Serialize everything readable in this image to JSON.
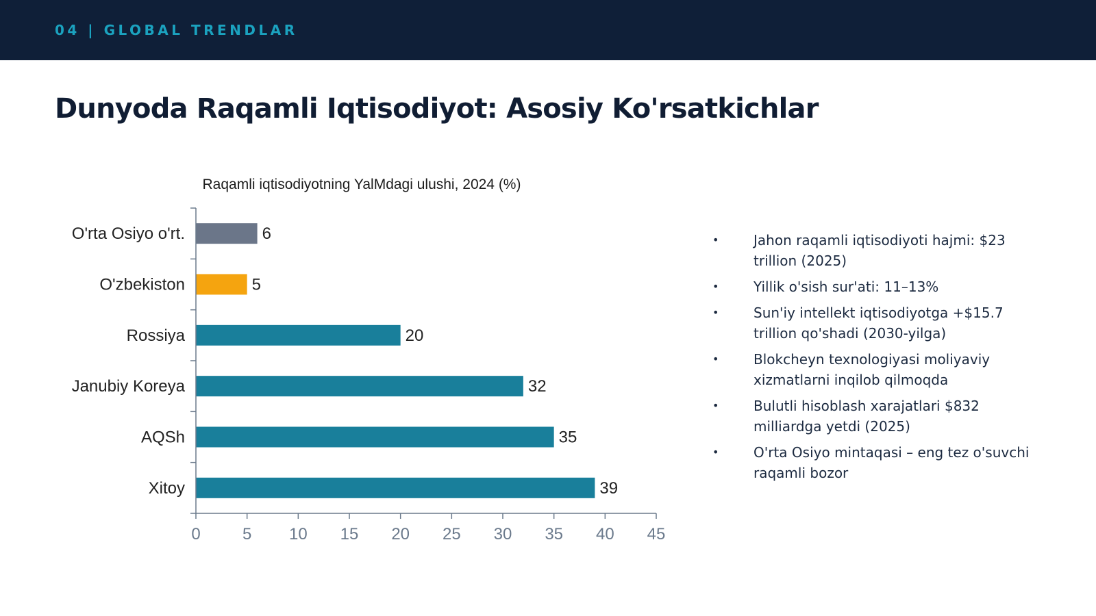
{
  "header": {
    "section_label": "04 | GLOBAL TRENDLAR"
  },
  "title": "Dunyoda Raqamli Iqtisodiyot: Asosiy Ko'rsatkichlar",
  "chart_data": {
    "type": "bar",
    "orientation": "horizontal",
    "title": "Raqamli iqtisodiyotning YalMdagi ulushi, 2024 (%)",
    "xlabel": "",
    "ylabel": "",
    "categories": [
      "O'rta Osiyo o'rt.",
      "O'zbekiston",
      "Rossiya",
      "Janubiy Koreya",
      "AQSh",
      "Xitoy"
    ],
    "values": [
      6,
      5,
      20,
      32,
      35,
      39
    ],
    "bar_colors": [
      "#6b7689",
      "#f5a40f",
      "#197f9b",
      "#197f9b",
      "#197f9b",
      "#197f9b"
    ],
    "xlim": [
      0,
      45
    ],
    "xticks": [
      0,
      5,
      10,
      15,
      20,
      25,
      30,
      35,
      40,
      45
    ],
    "grid": false,
    "data_labels": true
  },
  "bullets": [
    "Jahon raqamli iqtisodiyoti hajmi: $23 trillion (2025)",
    "Yillik o'sish sur'ati: 11–13%",
    "Sun'iy intellekt iqtisodiyotga +$15.7 trillion qo'shadi (2030-yilga)",
    "Blokcheyn texnologiyasi moliyaviy xizmatlarni inqilob qilmoqda",
    "Bulutli hisoblash xarajatlari $832 milliardga yetdi (2025)",
    "O'rta Osiyo mintaqasi – eng tez o'suvchi raqamli bozor"
  ],
  "colors": {
    "header_bg": "#0f1f38",
    "accent": "#1ba2bf",
    "title": "#101d33",
    "axis": "#6b7a8c"
  }
}
